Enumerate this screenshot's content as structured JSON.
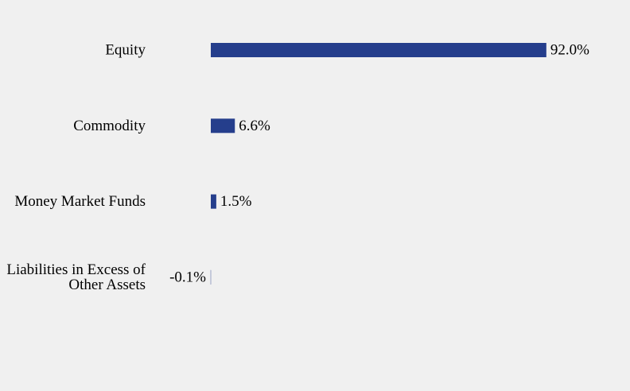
{
  "chart_data": {
    "type": "bar",
    "orientation": "horizontal",
    "categories": [
      [
        "Equity"
      ],
      [
        "Commodity"
      ],
      [
        "Money Market Funds"
      ],
      [
        "Liabilities in Excess of",
        "Other Assets"
      ]
    ],
    "values": [
      92.0,
      6.6,
      1.5,
      -0.1
    ],
    "value_labels": [
      "92.0%",
      "6.6%",
      "1.5%",
      "-0.1%"
    ],
    "unit": "%",
    "xlim": [
      0,
      100
    ],
    "grid": false,
    "legend": "none",
    "colors": {
      "bar": "#253e8c",
      "background": "#f0f0f0",
      "text": "#000000"
    }
  }
}
